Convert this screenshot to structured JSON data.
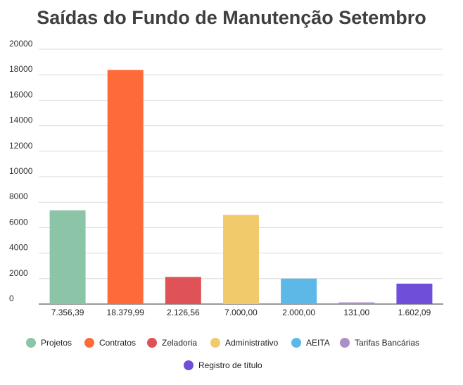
{
  "chart_data": {
    "type": "bar",
    "title": "Saídas do Fundo de Manutenção Setembro",
    "xlabel": "",
    "ylabel": "",
    "ylim": [
      0,
      20000
    ],
    "yticks": [
      0,
      2000,
      4000,
      6000,
      8000,
      10000,
      12000,
      14000,
      16000,
      18000,
      20000
    ],
    "grid": true,
    "legend_position": "bottom",
    "categories": [
      "7.356,39",
      "18.379,99",
      "2.126,56",
      "7.000,00",
      "2.000,00",
      "131,00",
      "1.602,09"
    ],
    "series": [
      {
        "name": "Projetos",
        "value": 7356.39,
        "color": "#8cc4a8"
      },
      {
        "name": "Contratos",
        "value": 18379.99,
        "color": "#ff6b38"
      },
      {
        "name": "Zeladoria",
        "value": 2126.56,
        "color": "#df5257"
      },
      {
        "name": "Administrativo",
        "value": 7000.0,
        "color": "#f1cb6b"
      },
      {
        "name": "AEITA",
        "value": 2000.0,
        "color": "#5cb8e6"
      },
      {
        "name": "Tarifas Bancárias",
        "value": 131.0,
        "color": "#ab8fc7"
      },
      {
        "name": "Registro de título",
        "value": 1602.09,
        "color": "#6f4fd9"
      }
    ]
  }
}
